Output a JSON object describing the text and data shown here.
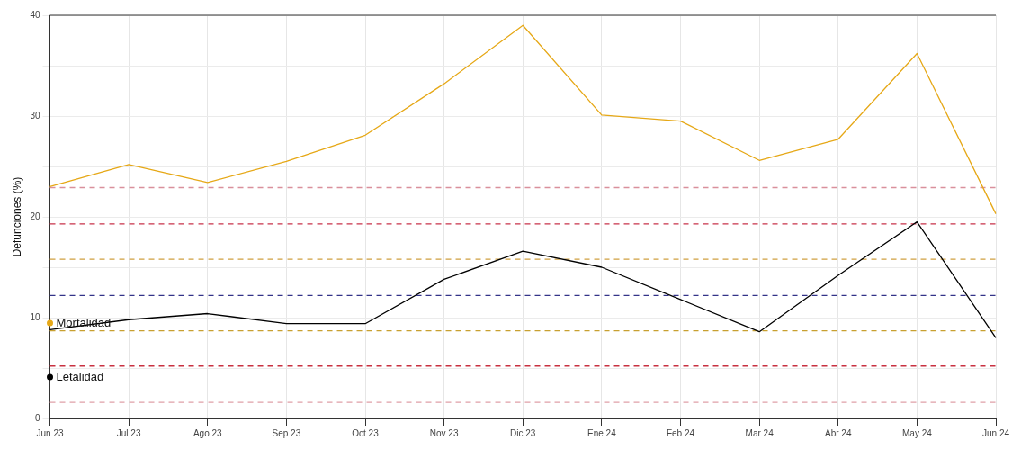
{
  "chart_data": {
    "type": "line",
    "ylabel": "Defunciones (%)",
    "categories": [
      "Jun 23",
      "Jul 23",
      "Ago 23",
      "Sep 23",
      "Oct 23",
      "Nov 23",
      "Dic 23",
      "Ene 24",
      "Feb 24",
      "Mar 24",
      "Abr 24",
      "May 24",
      "Jun 24"
    ],
    "series": [
      {
        "name": "Mortalidad",
        "color": "#e6a817",
        "values": [
          23.0,
          25.2,
          23.4,
          25.5,
          28.1,
          33.2,
          39.0,
          30.1,
          29.5,
          25.6,
          27.7,
          36.2,
          20.3
        ]
      },
      {
        "name": "Letalidad",
        "color": "#000000",
        "values": [
          8.8,
          9.8,
          10.4,
          9.4,
          9.4,
          13.8,
          16.6,
          15.0,
          11.8,
          8.6,
          14.2,
          19.5,
          8.0
        ]
      }
    ],
    "ylim": [
      0,
      40
    ],
    "yticks": [
      0,
      {
        "value": 5,
        "label": null
      },
      10,
      {
        "value": 15,
        "label": null
      },
      20,
      {
        "value": 25,
        "label": null
      },
      30,
      {
        "value": 35,
        "label": null
      },
      40
    ],
    "ref_lines": [
      {
        "axis": "y",
        "value": 22.9,
        "color": "#d9909c",
        "line_style": "dashed"
      },
      {
        "axis": "y",
        "value": 19.3,
        "color": "#c8324a",
        "line_style": "dashed"
      },
      {
        "axis": "y",
        "value": 15.8,
        "color": "#d0a040",
        "line_style": "dashed"
      },
      {
        "axis": "y",
        "value": 12.2,
        "color": "#333388",
        "line_style": "dashed"
      },
      {
        "axis": "y",
        "value": 8.7,
        "color": "#c8a030",
        "line_style": "dashed"
      },
      {
        "axis": "y",
        "value": 5.2,
        "color": "#c83040",
        "line_style": "dashed"
      },
      {
        "axis": "y",
        "value": 1.6,
        "color": "#e0a0a8",
        "line_style": "dashed"
      }
    ],
    "grid": true,
    "legend": "bottom left",
    "marker": "none",
    "line_style": "solid"
  }
}
